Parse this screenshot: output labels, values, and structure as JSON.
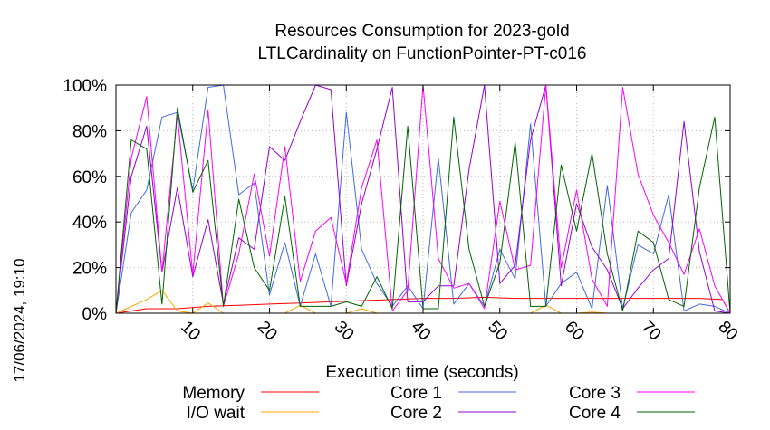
{
  "chart_data": {
    "type": "line",
    "title": "Resources Consumption for 2023-gold",
    "subtitle": "LTLCardinality on FunctionPointer-PT-c016",
    "xlabel": "Execution time (seconds)",
    "ylabel": "",
    "side_label": "17/06/2024, 19:10",
    "xlim": [
      0,
      80
    ],
    "ylim": [
      0,
      100
    ],
    "x_ticks": [
      10,
      20,
      30,
      40,
      50,
      60,
      70,
      80
    ],
    "y_ticks": [
      {
        "value": 0,
        "label": "0%"
      },
      {
        "value": 20,
        "label": "20%"
      },
      {
        "value": 40,
        "label": "40%"
      },
      {
        "value": 60,
        "label": "60%"
      },
      {
        "value": 80,
        "label": "80%"
      },
      {
        "value": 100,
        "label": "100%"
      }
    ],
    "grid": true,
    "legend_placement": "bottom",
    "series": [
      {
        "name": "Memory",
        "color": "#ff0000",
        "x": [
          0,
          4,
          8,
          12,
          16,
          20,
          24,
          28,
          32,
          36,
          40,
          44,
          48,
          52,
          56,
          60,
          64,
          68,
          72,
          76,
          79,
          80
        ],
        "y": [
          0,
          2,
          2,
          3,
          3.5,
          4,
          4.5,
          5,
          5.5,
          6,
          6.5,
          6.5,
          7,
          6.5,
          6.5,
          6.5,
          6.5,
          6.5,
          6.5,
          6.5,
          6,
          0
        ]
      },
      {
        "name": "I/O wait",
        "color": "#ffa500",
        "x": [
          0,
          4,
          6,
          8,
          10,
          12,
          14,
          16,
          18,
          20,
          22,
          24,
          26,
          28,
          30,
          32,
          34,
          36,
          38,
          40,
          42,
          44,
          46,
          48,
          50,
          52,
          54,
          56,
          58,
          60,
          62,
          64,
          66,
          68,
          70,
          72,
          74,
          76,
          78,
          80
        ],
        "y": [
          0,
          6,
          10,
          1,
          0,
          4.5,
          0,
          0,
          0,
          0,
          0,
          3.5,
          0,
          0,
          0,
          2,
          0,
          0,
          0,
          0,
          0,
          0,
          0,
          0,
          0,
          0,
          0,
          3.5,
          0,
          0,
          0.5,
          0,
          0,
          0,
          0,
          0,
          0,
          0,
          0,
          0
        ]
      },
      {
        "name": "Core 1",
        "color": "#4169e1",
        "x": [
          0,
          2,
          4,
          6,
          8,
          10,
          12,
          14,
          16,
          18,
          20,
          22,
          24,
          26,
          28,
          30,
          32,
          34,
          36,
          38,
          40,
          42,
          44,
          46,
          48,
          50,
          52,
          54,
          56,
          58,
          60,
          62,
          64,
          66,
          68,
          70,
          72,
          74,
          76,
          78,
          80
        ],
        "y": [
          0,
          44,
          54,
          86,
          88,
          54,
          99,
          100,
          52,
          57,
          8,
          31,
          3,
          26,
          3,
          88,
          28,
          13,
          3,
          12,
          2,
          68,
          4,
          13,
          3,
          28,
          15,
          83,
          3,
          13,
          18,
          2,
          56,
          2,
          30,
          26,
          52,
          1,
          4,
          3,
          0
        ]
      },
      {
        "name": "Core 2",
        "color": "#9400d3",
        "x": [
          0,
          2,
          4,
          6,
          8,
          10,
          12,
          14,
          16,
          18,
          20,
          22,
          24,
          26,
          28,
          30,
          32,
          34,
          36,
          38,
          40,
          42,
          44,
          46,
          48,
          50,
          52,
          54,
          56,
          58,
          60,
          62,
          64,
          66,
          68,
          70,
          72,
          74,
          76,
          78,
          80
        ],
        "y": [
          0,
          60,
          82,
          18,
          55,
          16,
          41,
          4,
          33,
          28,
          73,
          67,
          84,
          100,
          98,
          12,
          48,
          72,
          99,
          5,
          5,
          12,
          12,
          63,
          100,
          13,
          21,
          76,
          100,
          12,
          48,
          29,
          19,
          2,
          11,
          19,
          24,
          84,
          27,
          1,
          0
        ]
      },
      {
        "name": "Core 3",
        "color": "#ff00ff",
        "x": [
          0,
          2,
          4,
          6,
          8,
          10,
          12,
          14,
          16,
          18,
          20,
          22,
          24,
          26,
          28,
          30,
          32,
          34,
          36,
          38,
          40,
          42,
          44,
          46,
          48,
          50,
          52,
          54,
          56,
          58,
          60,
          62,
          64,
          66,
          68,
          70,
          72,
          74,
          76,
          78,
          80
        ],
        "y": [
          0,
          68,
          95,
          18,
          87,
          17,
          89,
          3,
          26,
          61,
          25,
          73,
          14,
          36,
          42,
          13,
          55,
          76,
          1,
          10,
          100,
          24,
          11,
          13,
          2,
          49,
          19,
          21,
          100,
          20,
          54,
          15,
          3,
          99,
          61,
          43,
          31,
          17,
          37,
          12,
          0
        ]
      },
      {
        "name": "Core 4",
        "color": "#006400",
        "x": [
          0,
          2,
          4,
          6,
          8,
          10,
          12,
          14,
          16,
          18,
          20,
          22,
          24,
          26,
          28,
          30,
          32,
          34,
          36,
          38,
          40,
          42,
          44,
          46,
          48,
          50,
          52,
          54,
          56,
          58,
          60,
          62,
          64,
          66,
          68,
          70,
          72,
          74,
          76,
          78,
          80
        ],
        "y": [
          0,
          76,
          72,
          4,
          90,
          53,
          67,
          3,
          50,
          20,
          10,
          51,
          3,
          3,
          3,
          5,
          3,
          16,
          2,
          82,
          2,
          2,
          86,
          28,
          3,
          22,
          75,
          3,
          3,
          65,
          36,
          70,
          26,
          1,
          36,
          31,
          6,
          3,
          55,
          86,
          0
        ]
      }
    ]
  }
}
